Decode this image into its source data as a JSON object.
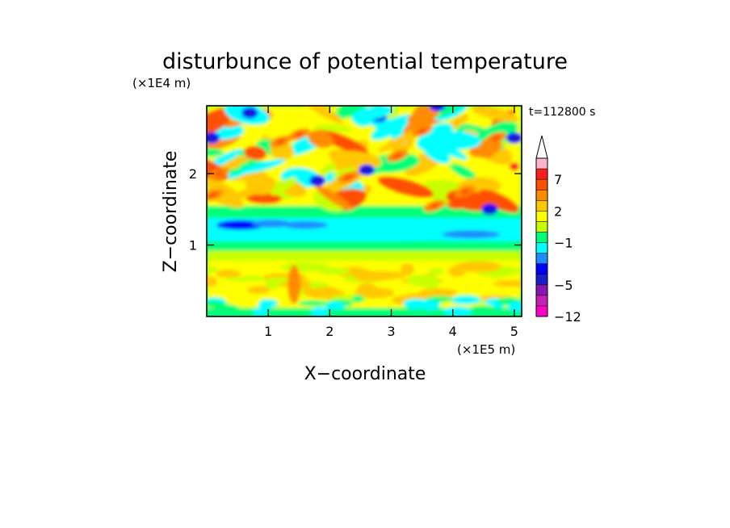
{
  "chart_data": {
    "type": "heatmap",
    "title": "disturbunce of potential temperature",
    "xlabel": "X−coordinate",
    "ylabel": "Z−coordinate",
    "x_unit": "(×1E5 m)",
    "y_unit": "(×1E4 m)",
    "time_label": "t=112800 s",
    "xlim": [
      0,
      5.12
    ],
    "ylim": [
      0,
      2.95
    ],
    "x_ticks": [
      {
        "v": 1,
        "label": "1"
      },
      {
        "v": 2,
        "label": "2"
      },
      {
        "v": 3,
        "label": "3"
      },
      {
        "v": 4,
        "label": "4"
      },
      {
        "v": 5,
        "label": "5"
      }
    ],
    "y_ticks": [
      {
        "v": 1,
        "label": "1"
      },
      {
        "v": 2,
        "label": "2"
      }
    ],
    "colorbar": {
      "levels": [
        -12,
        -9,
        -7,
        -5,
        -4,
        -3,
        -2,
        -1,
        0,
        1,
        2,
        3,
        5,
        7,
        9,
        12
      ],
      "labels": [
        {
          "v": -12,
          "label": "−12"
        },
        {
          "v": -5,
          "label": "−5"
        },
        {
          "v": -1,
          "label": "−1"
        },
        {
          "v": 2,
          "label": "2"
        },
        {
          "v": 7,
          "label": "7"
        }
      ],
      "colors": [
        "#ff00c8",
        "#c81eb4",
        "#8c14b4",
        "#1e1ec8",
        "#0000ff",
        "#1e8cff",
        "#00ffff",
        "#00ff78",
        "#c8ff00",
        "#ffff00",
        "#ffc800",
        "#ff8c00",
        "#ff5000",
        "#ff1e1e",
        "#ffb4c8"
      ],
      "extend": "max"
    }
  }
}
